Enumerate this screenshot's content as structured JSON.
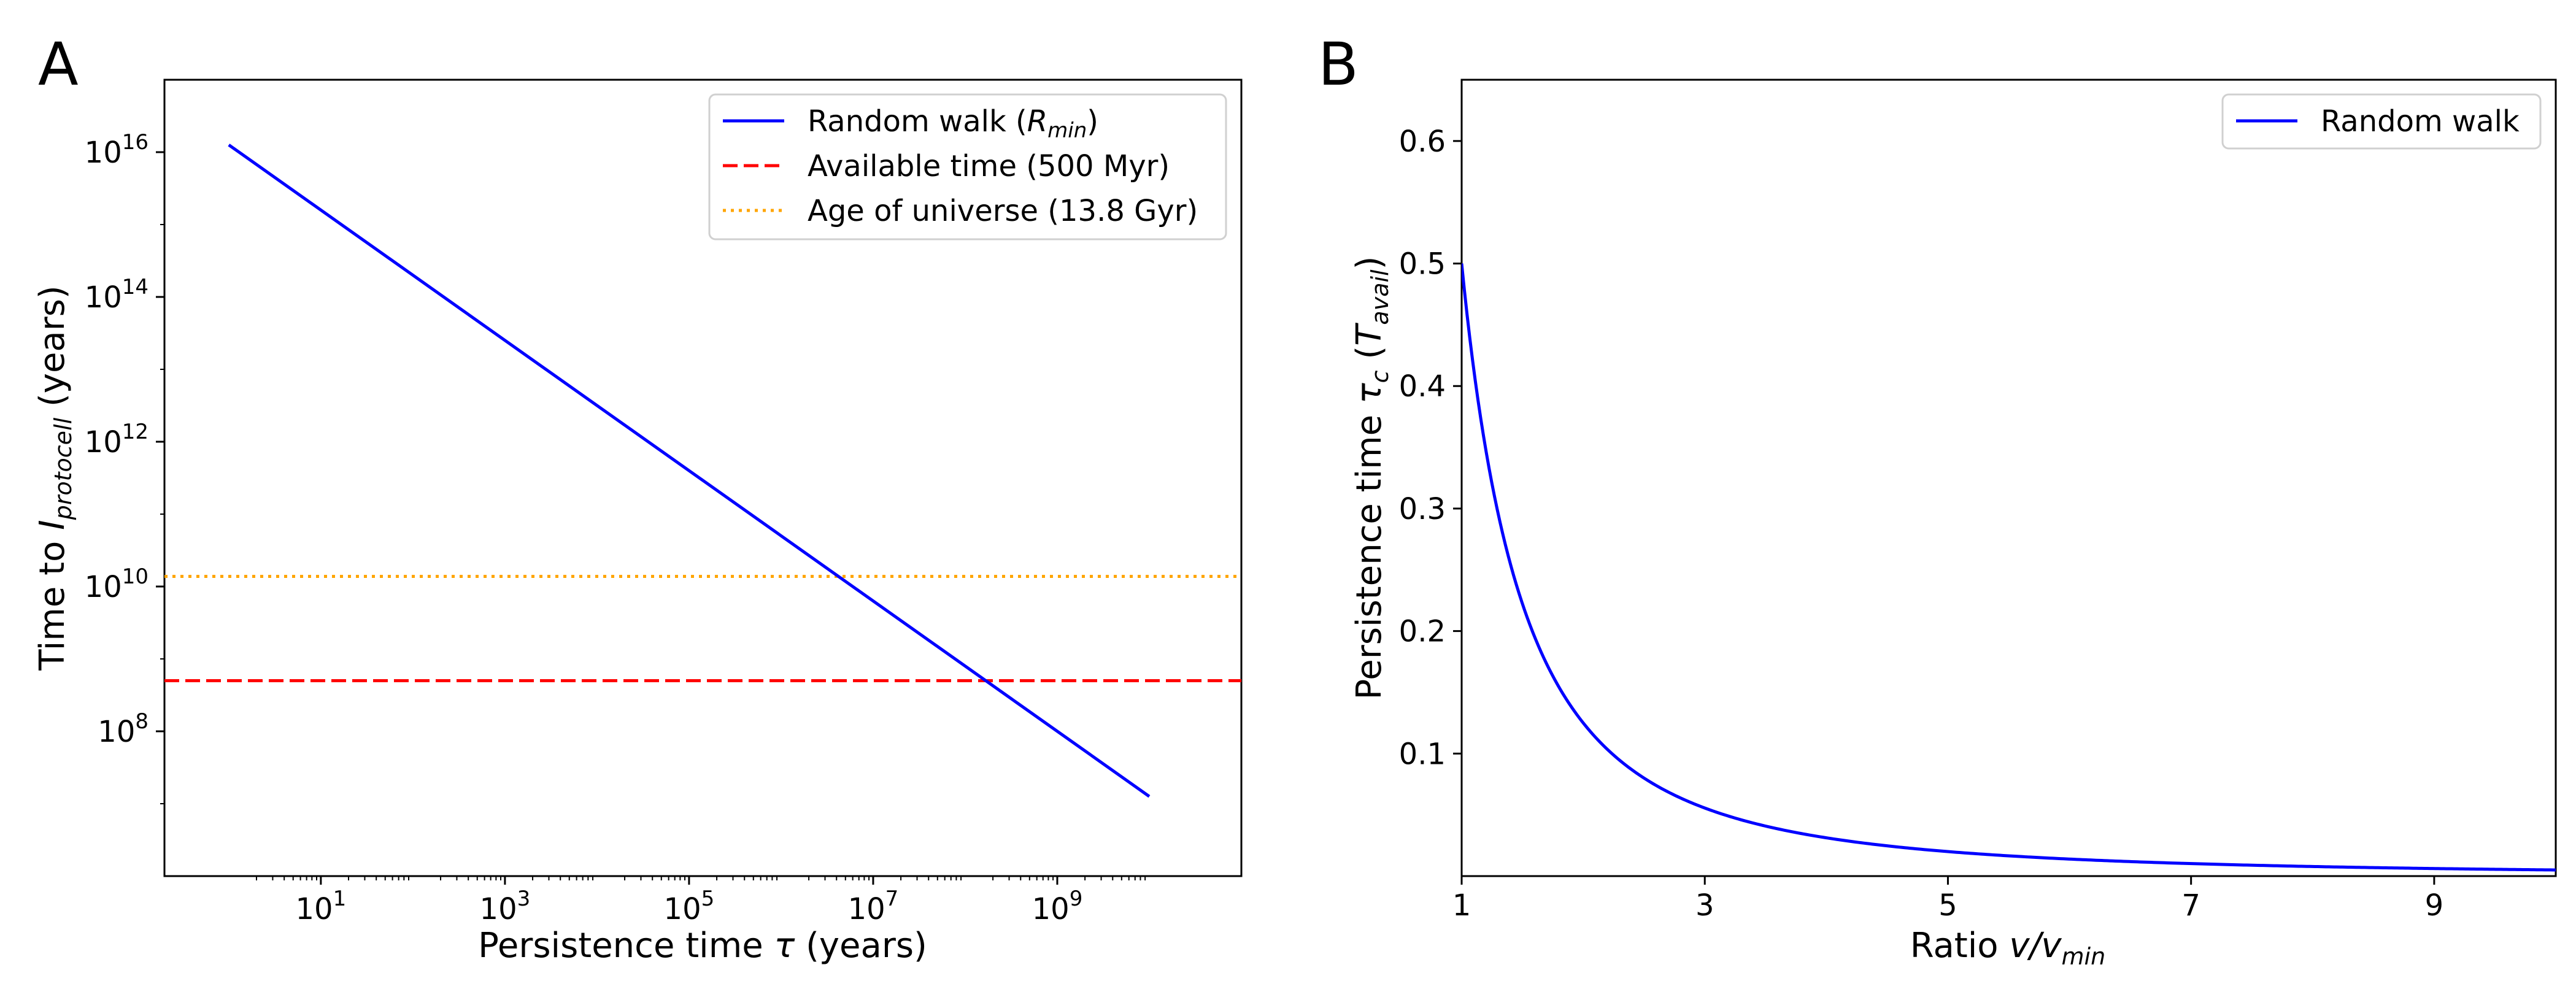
{
  "chart_data": [
    {
      "panel": "A",
      "type": "line",
      "x_scale": "log",
      "y_scale": "log",
      "xlabel_prefix": "Persistence time ",
      "xlabel_symbol": "τ",
      "xlabel_suffix": " (years)",
      "ylabel_prefix": "Time to ",
      "ylabel_symbol": "I",
      "ylabel_sub": "protocell",
      "ylabel_suffix": " (years)",
      "xlim": [
        0.2,
        100000000000
      ],
      "ylim": [
        1000000.0,
        1e+17
      ],
      "x_ticks": [
        {
          "value": 10,
          "base": "10",
          "exp": "1"
        },
        {
          "value": 1000,
          "base": "10",
          "exp": "3"
        },
        {
          "value": 100000,
          "base": "10",
          "exp": "5"
        },
        {
          "value": 10000000,
          "base": "10",
          "exp": "7"
        },
        {
          "value": 1000000000,
          "base": "10",
          "exp": "9"
        }
      ],
      "y_ticks": [
        {
          "value": 100000000,
          "base": "10",
          "exp": "8"
        },
        {
          "value": 10000000000,
          "base": "10",
          "exp": "10"
        },
        {
          "value": 1000000000000,
          "base": "10",
          "exp": "12"
        },
        {
          "value": 100000000000000,
          "base": "10",
          "exp": "14"
        },
        {
          "value": 10000000000000000,
          "base": "10",
          "exp": "16"
        }
      ],
      "series": [
        {
          "name": "Random walk",
          "name_symbol": "R",
          "name_sub": "min",
          "style": "solid",
          "color": "#0000ff",
          "x": [
            1,
            10000000000
          ],
          "y": [
            12600000000000000,
            12600000
          ]
        },
        {
          "name": "Available time (500 Myr)",
          "style": "dashed",
          "color": "#ff0000",
          "hline": 500000000
        },
        {
          "name": "Age of universe (13.8 Gyr)",
          "style": "dotted",
          "color": "#ffa500",
          "hline": 13800000000
        }
      ],
      "legend": "top-right",
      "grid": false
    },
    {
      "panel": "B",
      "type": "line",
      "x_scale": "linear",
      "y_scale": "linear",
      "xlabel_prefix": "Ratio ",
      "xlabel_symbol": "v/v",
      "xlabel_sub": "min",
      "ylabel_prefix": "Persistence time ",
      "ylabel_symbol": "τ",
      "ylabel_sub_main": "c",
      "ylabel_paren_open": " (",
      "ylabel_symbol2": "T",
      "ylabel_sub2": "avail",
      "ylabel_paren_close": ")",
      "xlim": [
        1,
        10
      ],
      "ylim": [
        0,
        0.65
      ],
      "x_ticks": [
        1,
        3,
        5,
        7,
        9
      ],
      "y_ticks": [
        0.1,
        0.2,
        0.3,
        0.4,
        0.5,
        0.6
      ],
      "series": [
        {
          "name": "Random walk",
          "style": "solid",
          "color": "#0000ff",
          "function": "0.5 / x^2",
          "x_range": [
            1,
            10
          ]
        }
      ],
      "legend": "top-right",
      "grid": false
    }
  ]
}
